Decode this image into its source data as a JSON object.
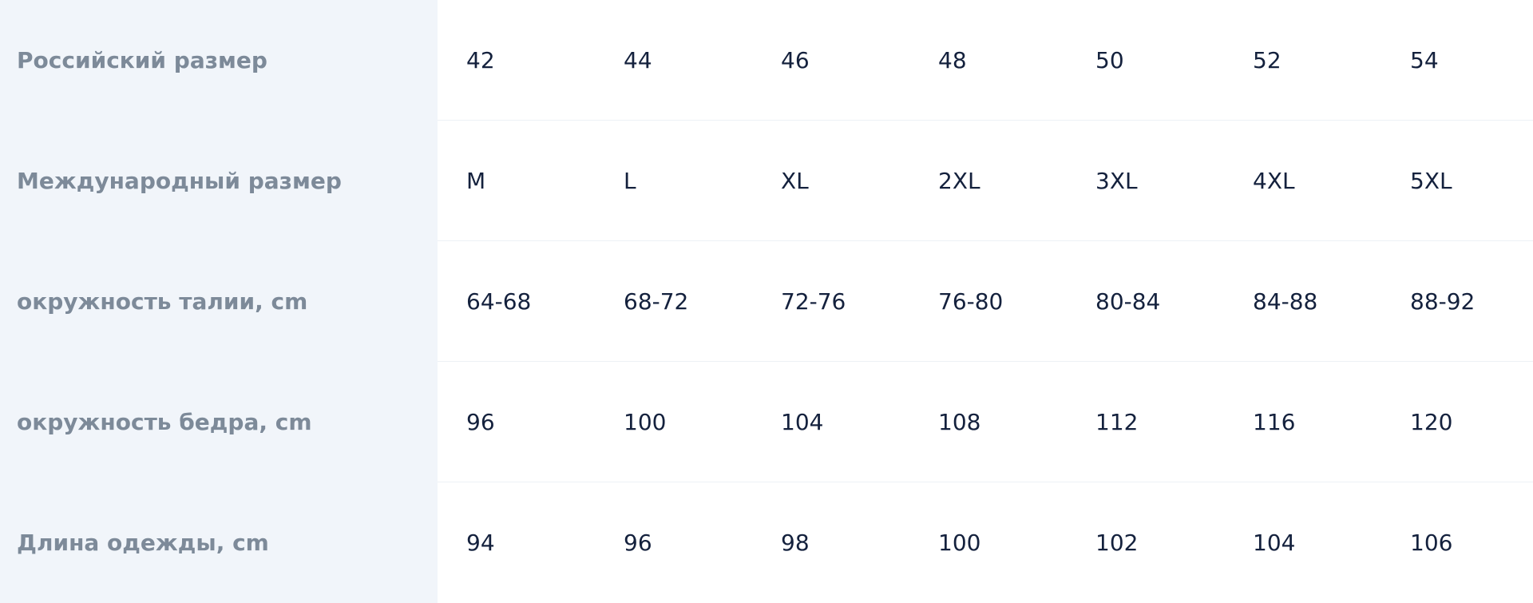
{
  "table": {
    "rows": [
      {
        "label": "Российский размер",
        "values": [
          "42",
          "44",
          "46",
          "48",
          "50",
          "52",
          "54"
        ]
      },
      {
        "label": "Международный размер",
        "values": [
          "M",
          "L",
          "XL",
          "2XL",
          "3XL",
          "4XL",
          "5XL"
        ]
      },
      {
        "label": "окружность талии, cm",
        "values": [
          "64-68",
          "68-72",
          "72-76",
          "76-80",
          "80-84",
          "84-88",
          "88-92"
        ]
      },
      {
        "label": "окружность бедра, cm",
        "values": [
          "96",
          "100",
          "104",
          "108",
          "112",
          "116",
          "120"
        ]
      },
      {
        "label": "Длина одежды, cm",
        "values": [
          "94",
          "96",
          "98",
          "100",
          "102",
          "104",
          "106"
        ]
      }
    ]
  }
}
